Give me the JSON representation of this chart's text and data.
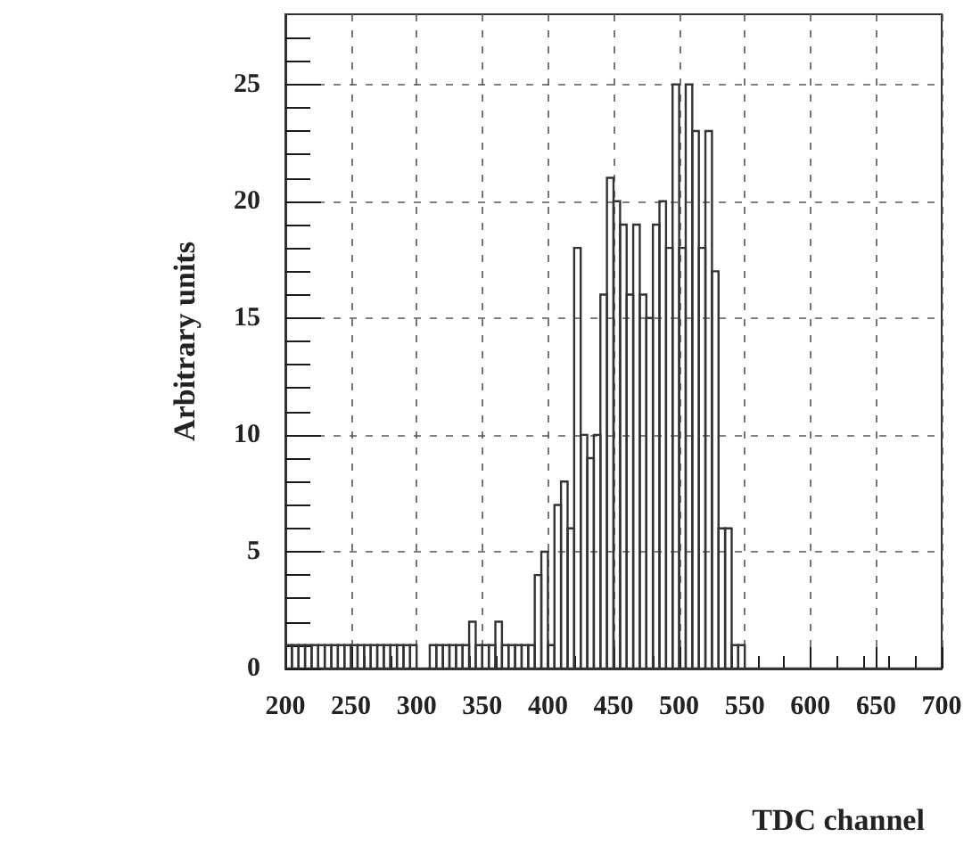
{
  "chart_data": {
    "type": "histogram",
    "xlabel": "TDC channel",
    "ylabel": "Arbitrary units",
    "color": "#333333",
    "bins": [
      200,
      205,
      210,
      215,
      220,
      225,
      230,
      235,
      240,
      245,
      250,
      255,
      260,
      265,
      270,
      275,
      280,
      285,
      290,
      295,
      300,
      305,
      310,
      315,
      320,
      325,
      330,
      335,
      340,
      345,
      350,
      355,
      360,
      365,
      370,
      375,
      380,
      385,
      390,
      395,
      400,
      405,
      410,
      415,
      420,
      425,
      430,
      435,
      440,
      445,
      450,
      455,
      460,
      465,
      470,
      475,
      480,
      485,
      490,
      495,
      500,
      505,
      510,
      515,
      520,
      525,
      530,
      535,
      540,
      545,
      550,
      555,
      560,
      565,
      570,
      575,
      580,
      585,
      590,
      595,
      600,
      605,
      610,
      615,
      620,
      625,
      630,
      635,
      640,
      645,
      650,
      655,
      660,
      665,
      670,
      675,
      680,
      685,
      690,
      695,
      700
    ],
    "values": [
      1,
      1,
      1,
      1,
      1,
      1,
      1,
      1,
      1,
      1,
      1,
      1,
      1,
      1,
      1,
      1,
      1,
      1,
      1,
      1,
      0,
      0,
      1,
      1,
      1,
      1,
      1,
      1,
      2,
      1,
      1,
      1,
      2,
      1,
      1,
      1,
      1,
      1,
      4,
      5,
      1,
      7,
      8,
      6,
      18,
      10,
      9,
      10,
      16,
      21,
      20,
      19,
      16,
      19,
      16,
      15,
      19,
      20,
      18,
      25,
      18,
      25,
      23,
      18,
      23,
      17,
      6,
      6,
      1,
      1,
      0,
      0,
      0,
      0,
      0,
      0,
      0,
      0,
      0,
      0,
      0,
      0,
      0,
      0,
      0,
      0,
      0,
      0,
      0,
      0,
      0,
      0,
      0,
      0,
      0,
      0,
      0,
      0,
      0,
      0
    ],
    "xlim": [
      200,
      700
    ],
    "xticks": [
      200,
      250,
      300,
      350,
      400,
      450,
      500,
      550,
      600,
      650,
      700
    ],
    "ylim": [
      0,
      28
    ],
    "yticks": [
      0,
      5,
      10,
      15,
      20,
      25
    ],
    "grid": true
  }
}
